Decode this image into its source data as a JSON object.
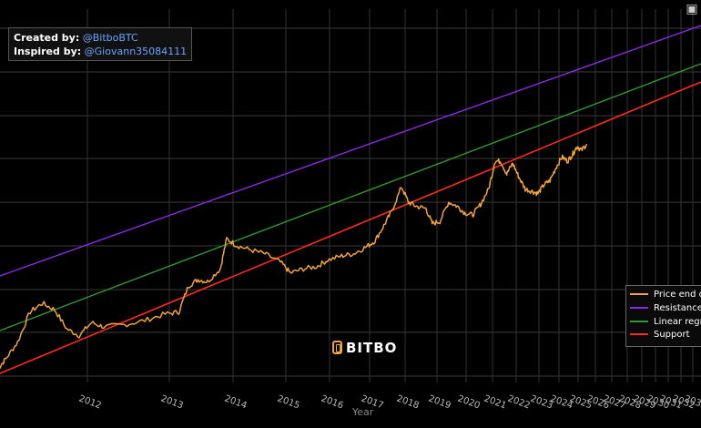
{
  "credits": {
    "created_label": "Created by:",
    "created_handle": "@BitboBTC",
    "inspired_label": "Inspired by:",
    "inspired_handle": "@Giovann35084111"
  },
  "logo_text": "BITBO",
  "corner_icon": "camera-icon",
  "chart_data": {
    "type": "line",
    "xlabel": "Year",
    "x_tick_labels": [
      "2012",
      "2013",
      "2014",
      "2015",
      "2016",
      "2017",
      "2018",
      "2019",
      "2020",
      "2021",
      "2022",
      "2023",
      "2024",
      "2025",
      "2026",
      "2027",
      "2028",
      "2029",
      "2030",
      "2031",
      "2032",
      "2033"
    ],
    "y_scale": "log",
    "grid": true,
    "legend_placement": "bottom-right",
    "series": [
      {
        "name": "Price end o",
        "color": "#f2a33a",
        "kind": "price"
      },
      {
        "name": "Resistance",
        "color": "#8a2be2",
        "kind": "line"
      },
      {
        "name": "Linear regr",
        "color": "#2e9a2e",
        "kind": "line"
      },
      {
        "name": "Support",
        "color": "#ff2a1a",
        "kind": "line"
      }
    ],
    "price_points": [
      [
        2010.9,
        -3.95
      ],
      [
        2011.0,
        -3.7
      ],
      [
        2011.15,
        -3.3
      ],
      [
        2011.3,
        -2.6
      ],
      [
        2011.45,
        -2.4
      ],
      [
        2011.6,
        -2.55
      ],
      [
        2011.75,
        -3.0
      ],
      [
        2011.9,
        -3.15
      ],
      [
        2012.05,
        -2.85
      ],
      [
        2012.2,
        -2.95
      ],
      [
        2012.45,
        -2.9
      ],
      [
        2012.7,
        -2.8
      ],
      [
        2012.95,
        -2.65
      ],
      [
        2013.15,
        -2.6
      ],
      [
        2013.3,
        -2.0
      ],
      [
        2013.45,
        -1.85
      ],
      [
        2013.6,
        -1.9
      ],
      [
        2013.8,
        -1.6
      ],
      [
        2013.9,
        -0.9
      ],
      [
        2014.05,
        -1.05
      ],
      [
        2014.3,
        -1.15
      ],
      [
        2014.6,
        -1.25
      ],
      [
        2014.9,
        -1.45
      ],
      [
        2015.1,
        -1.7
      ],
      [
        2015.4,
        -1.6
      ],
      [
        2015.7,
        -1.55
      ],
      [
        2015.95,
        -1.4
      ],
      [
        2016.3,
        -1.3
      ],
      [
        2016.6,
        -1.25
      ],
      [
        2016.9,
        -1.1
      ],
      [
        2017.15,
        -0.95
      ],
      [
        2017.4,
        -0.6
      ],
      [
        2017.6,
        -0.3
      ],
      [
        2017.9,
        0.3
      ],
      [
        2018.1,
        -0.05
      ],
      [
        2018.35,
        -0.15
      ],
      [
        2018.65,
        -0.2
      ],
      [
        2018.85,
        -0.55
      ],
      [
        2019.1,
        -0.5
      ],
      [
        2019.4,
        -0.05
      ],
      [
        2019.7,
        -0.15
      ],
      [
        2019.95,
        -0.3
      ],
      [
        2020.25,
        -0.35
      ],
      [
        2020.55,
        -0.1
      ],
      [
        2020.85,
        0.25
      ],
      [
        2021.1,
        0.9
      ],
      [
        2021.35,
        0.9
      ],
      [
        2021.6,
        0.6
      ],
      [
        2021.85,
        0.85
      ],
      [
        2022.1,
        0.55
      ],
      [
        2022.4,
        0.25
      ],
      [
        2022.7,
        0.2
      ],
      [
        2022.95,
        0.15
      ],
      [
        2023.25,
        0.35
      ],
      [
        2023.55,
        0.45
      ],
      [
        2023.85,
        0.75
      ],
      [
        2024.15,
        1.0
      ],
      [
        2024.45,
        0.9
      ],
      [
        2024.7,
        1.05
      ],
      [
        2024.95,
        1.25
      ],
      [
        2025.2,
        1.15
      ],
      [
        2025.5,
        1.3
      ]
    ]
  }
}
